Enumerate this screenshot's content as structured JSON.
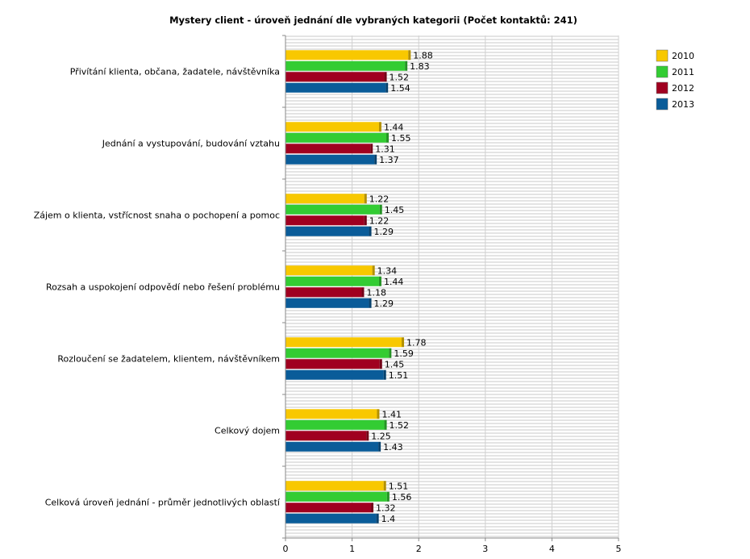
{
  "chart_data": {
    "type": "bar",
    "orientation": "horizontal",
    "title": "Mystery client - úroveň jednání dle vybraných kategorii (Počet kontaktů: 241)",
    "categories": [
      "Přivítání klienta, občana, žadatele, návštěvníka",
      "Jednání a vystupování, budování vztahu",
      "Zájem o klienta, vstřícnost snaha o pochopení a pomoc",
      "Rozsah a uspokojení odpovědí nebo řešení problému",
      "Rozloučení se žadatelem, klientem, návštěvníkem",
      "Celkový dojem",
      "Celková úroveň jednání - průměr jednotlivých oblastí"
    ],
    "series": [
      {
        "name": "2010",
        "color": "#f8c800",
        "values": [
          1.88,
          1.44,
          1.22,
          1.34,
          1.78,
          1.41,
          1.51
        ],
        "labels": [
          "1.88",
          "1.44",
          "1.22",
          "1.34",
          "1.78",
          "1.41",
          "1.51"
        ]
      },
      {
        "name": "2011",
        "color": "#33cc33",
        "values": [
          1.83,
          1.55,
          1.45,
          1.44,
          1.59,
          1.52,
          1.56
        ],
        "labels": [
          "1.83",
          "1.55",
          "1.45",
          "1.44",
          "1.59",
          "1.52",
          "1.56"
        ]
      },
      {
        "name": "2012",
        "color": "#a00020",
        "values": [
          1.52,
          1.31,
          1.22,
          1.18,
          1.45,
          1.25,
          1.32
        ],
        "labels": [
          "1.52",
          "1.31",
          "1.22",
          "1.18",
          "1.45",
          "1.25",
          "1.32"
        ]
      },
      {
        "name": "2013",
        "color": "#0a5c99",
        "values": [
          1.54,
          1.37,
          1.29,
          1.29,
          1.51,
          1.43,
          1.4
        ],
        "labels": [
          "1.54",
          "1.37",
          "1.29",
          "1.29",
          "1.51",
          "1.43",
          "1.4"
        ]
      }
    ],
    "xlim": [
      0,
      5
    ],
    "xticks": [
      "0",
      "1",
      "2",
      "3",
      "4",
      "5"
    ],
    "xlabel": "",
    "ylabel": "",
    "grid": true,
    "legend_position": "top-right"
  }
}
